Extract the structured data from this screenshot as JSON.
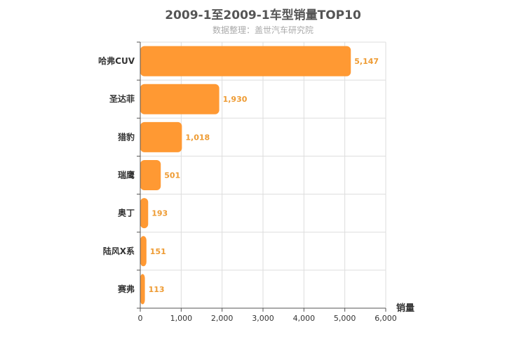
{
  "header": {
    "title": "2009-1至2009-1车型销量TOP10",
    "subtitle": "数据整理：盖世汽车研究院"
  },
  "colors": {
    "bar": "#ff9933",
    "data_label": "#ee9b33",
    "grid": "#dddddd",
    "axis": "#555555"
  },
  "chart_data": {
    "type": "bar",
    "orientation": "horizontal",
    "title": "2009-1至2009-1车型销量TOP10",
    "subtitle": "数据整理：盖世汽车研究院",
    "categories": [
      "哈弗CUV",
      "圣达菲",
      "猎豹",
      "瑞鹰",
      "奥丁",
      "陆风X系",
      "赛弗"
    ],
    "values": [
      5147,
      1930,
      1018,
      501,
      193,
      151,
      113
    ],
    "value_labels": [
      "5,147",
      "1,930",
      "1,018",
      "501",
      "193",
      "151",
      "113"
    ],
    "xlabel": "销量",
    "ylabel": "",
    "xlim": [
      0,
      6000
    ],
    "ticks": [
      0,
      1000,
      2000,
      3000,
      4000,
      5000,
      6000
    ],
    "tick_labels": [
      "0",
      "1,000",
      "2,000",
      "3,000",
      "4,000",
      "5,000",
      "6,000"
    ],
    "grid": true,
    "legend": "none"
  }
}
